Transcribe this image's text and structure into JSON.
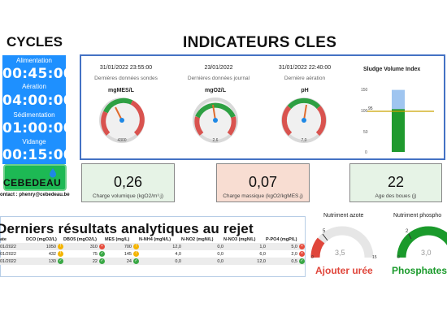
{
  "cycles": {
    "title": "CYCLES",
    "items": [
      {
        "label": "Alimentation",
        "time": "00:45:00",
        "active": false
      },
      {
        "label": "Aération",
        "time": "04:00:00",
        "active": false
      },
      {
        "label": "Sédimentation",
        "time": "01:00:00",
        "active": true
      },
      {
        "label": "Vidange",
        "time": "00:15:00",
        "active": false
      }
    ],
    "active_color": "#1db954",
    "panel_color": "#1e90ff"
  },
  "brand": {
    "name": "CEBEDEAU",
    "contact": "ontact : phenry@cebedeau.be",
    "logo_icon": "water-drop-icon"
  },
  "indicators": {
    "title": "INDICATEURS CLES",
    "gauges": [
      {
        "date": "31/01/2022 23:55:00",
        "subtitle": "Dernières données sondes",
        "unit": "mgMES/L",
        "value": "4300",
        "level": 0.55
      },
      {
        "date": "23/01/2022",
        "subtitle": "Dernières données journal",
        "unit": "mgO2/L",
        "value": "2,6",
        "level": 0.3
      },
      {
        "date": "31/01/2022 22:40:00",
        "subtitle": "Dernière aération",
        "unit": "pH",
        "value": "7,0",
        "level": 0.5
      }
    ],
    "svi": {
      "title": "Sludge Volume Index",
      "ticks": [
        "150",
        "100",
        "50",
        "0"
      ],
      "ymax": 150,
      "bar_total": 145,
      "bar_green": 100,
      "threshold": 95,
      "threshold_label": "95"
    }
  },
  "kpis": [
    {
      "value": "0,26",
      "label": "Charge volumique (kgO2/m³.j)",
      "bg": "#e6f3e6"
    },
    {
      "value": "0,07",
      "label": "Charge massique (kgO2/kgMES.j)",
      "bg": "#f8ddd2"
    },
    {
      "value": "22",
      "label": "Age des boues (j)",
      "bg": "#e6f3e6"
    }
  ],
  "results": {
    "title": "Derniers résultats analytiques au rejet",
    "columns": [
      "ate",
      "DCO (mgO2/L)",
      "DBO5 (mgO2/L)",
      "MES (mg/L)",
      "N-NH4 (mgN/L)",
      "N-NO2 (mgN/L)",
      "N-NO3 (mgN/L)",
      "P-PO4 (mgP/L)"
    ],
    "rows": [
      {
        "date": "01/2022",
        "dco": "1050",
        "dco_s": "yel",
        "dbo": "310",
        "dbo_s": "red",
        "mes": "700",
        "mes_s": "yel",
        "nh4": "12,0",
        "no2": "0,0",
        "no3": "1,0",
        "po4": "5,0",
        "po4_s": "red"
      },
      {
        "date": "01/2022",
        "dco": "432",
        "dco_s": "yel",
        "dbo": "75",
        "dbo_s": "grn",
        "mes": "145",
        "mes_s": "yel",
        "nh4": "4,0",
        "no2": "0,0",
        "no3": "6,0",
        "po4": "2,0",
        "po4_s": "red"
      },
      {
        "date": "01/2022",
        "dco": "130",
        "dco_s": "grn",
        "dbo": "22",
        "dbo_s": "grn",
        "mes": "24",
        "mes_s": "grn",
        "nh4": "0,0",
        "no2": "0,0",
        "no3": "12,0",
        "po4": "0,5",
        "po4_s": "grn"
      }
    ]
  },
  "nutrients": [
    {
      "title": "Nutriment azote",
      "value": "3,5",
      "min": "0",
      "max": "15",
      "target": "5",
      "alert": "Ajouter urée",
      "alert_color": "#e0463b"
    },
    {
      "title": "Nutriment phospho",
      "value": "3,0",
      "min": "0",
      "target": "2",
      "alert": "Phosphates o",
      "alert_color": "#1a9a2b"
    }
  ]
}
